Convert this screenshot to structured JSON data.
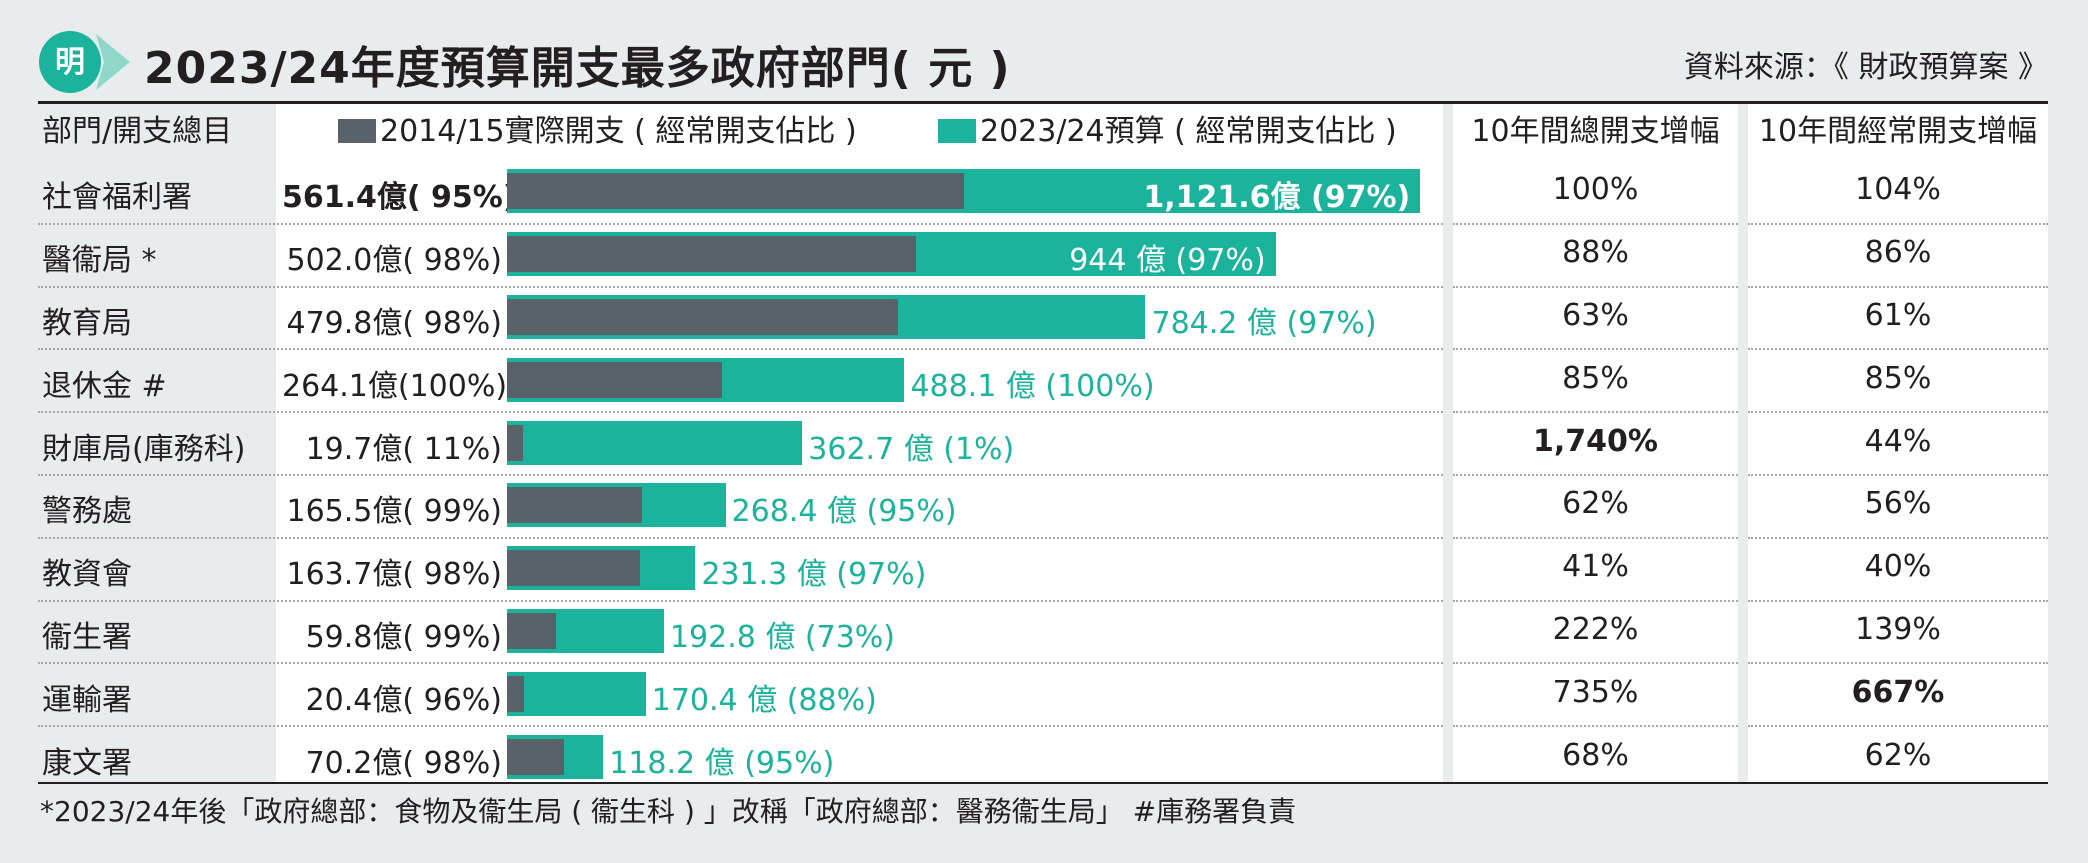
{
  "header": {
    "logo_char": "明",
    "title": "2023/24年度預算開支最多政府部門( 元 )",
    "source": "資料來源：《 財政預算案 》"
  },
  "columns": {
    "dept": "部門/開支總目",
    "total_growth": "10年間總開支增幅",
    "recurrent_growth": "10年間經常開支增幅"
  },
  "legend": {
    "old": "2014/15實際開支 ( 經常開支佔比 )",
    "new": "2023/24預算 ( 經常開支佔比 )"
  },
  "colors": {
    "old": "#5a6269",
    "new": "#1bb39c",
    "background": "#e9ecec"
  },
  "rows": [
    {
      "dept": "社會福利署",
      "old_label": "561.4億(  95%)",
      "new_label": "1,121.6億 (97%)",
      "total_growth": "100%",
      "recurrent_growth": "104%"
    },
    {
      "dept": "醫衞局 *",
      "old_label": "502.0億(  98%)",
      "new_label": "944 億 (97%)",
      "total_growth": "88%",
      "recurrent_growth": "86%"
    },
    {
      "dept": "教育局",
      "old_label": "479.8億(  98%)",
      "new_label": "784.2 億 (97%)",
      "total_growth": "63%",
      "recurrent_growth": "61%"
    },
    {
      "dept": "退休金 #",
      "old_label": "264.1億(100%)",
      "new_label": "488.1 億 (100%)",
      "total_growth": "85%",
      "recurrent_growth": "85%"
    },
    {
      "dept": "財庫局(庫務科)",
      "old_label": "19.7億(  11%)",
      "new_label": "362.7 億 (1%)",
      "total_growth": "1,740%",
      "recurrent_growth": "44%"
    },
    {
      "dept": "警務處",
      "old_label": "165.5億(  99%)",
      "new_label": "268.4 億 (95%)",
      "total_growth": "62%",
      "recurrent_growth": "56%"
    },
    {
      "dept": "教資會",
      "old_label": "163.7億(  98%)",
      "new_label": "231.3 億 (97%)",
      "total_growth": "41%",
      "recurrent_growth": "40%"
    },
    {
      "dept": "衞生署",
      "old_label": "59.8億(  99%)",
      "new_label": "192.8 億 (73%)",
      "total_growth": "222%",
      "recurrent_growth": "139%"
    },
    {
      "dept": "運輸署",
      "old_label": "20.4億(  96%)",
      "new_label": "170.4 億 (88%)",
      "total_growth": "735%",
      "recurrent_growth": "667%"
    },
    {
      "dept": "康文署",
      "old_label": "70.2億(  98%)",
      "new_label": "118.2 億 (95%)",
      "total_growth": "68%",
      "recurrent_growth": "62%"
    }
  ],
  "chart_data": {
    "type": "bar",
    "title": "2023/24年度預算開支最多政府部門( 元 )",
    "categories": [
      "社會福利署",
      "醫衞局 *",
      "教育局",
      "退休金 #",
      "財庫局(庫務科)",
      "警務處",
      "教資會",
      "衞生署",
      "運輸署",
      "康文署"
    ],
    "series": [
      {
        "name": "2014/15實際開支 ( 經常開支佔比 )",
        "values": [
          561.4,
          502.0,
          479.8,
          264.1,
          19.7,
          165.5,
          163.7,
          59.8,
          20.4,
          70.2
        ],
        "recurrent_share_pct": [
          95,
          98,
          98,
          100,
          11,
          99,
          98,
          99,
          96,
          98
        ]
      },
      {
        "name": "2023/24預算 ( 經常開支佔比 )",
        "values": [
          1121.6,
          944,
          784.2,
          488.1,
          362.7,
          268.4,
          231.3,
          192.8,
          170.4,
          118.2
        ],
        "recurrent_share_pct": [
          97,
          97,
          97,
          100,
          1,
          95,
          97,
          73,
          88,
          95
        ]
      }
    ],
    "total_growth_pct": [
      100,
      88,
      63,
      85,
      1740,
      62,
      41,
      222,
      735,
      68
    ],
    "recurrent_growth_pct": [
      104,
      86,
      61,
      85,
      44,
      56,
      40,
      139,
      667,
      62
    ],
    "orientation": "horizontal",
    "grid": false
  },
  "footnote": "*2023/24年後「政府總部：食物及衞生局 ( 衞生科 ) 」改稱「政府總部：醫務衞生局」   #庫務署負責"
}
